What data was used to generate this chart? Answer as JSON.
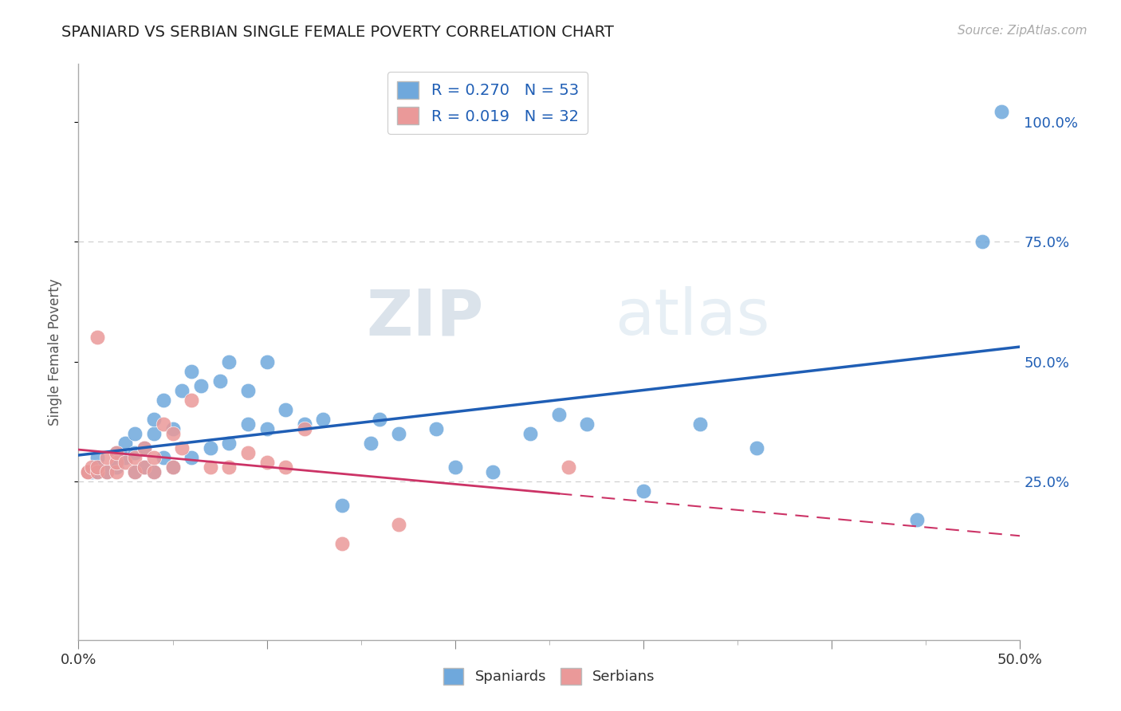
{
  "title": "SPANIARD VS SERBIAN SINGLE FEMALE POVERTY CORRELATION CHART",
  "source_text": "Source: ZipAtlas.com",
  "ylabel": "Single Female Poverty",
  "xlim": [
    0.0,
    0.5
  ],
  "ylim": [
    -0.08,
    1.12
  ],
  "spaniard_color": "#6fa8dc",
  "serbian_color": "#ea9999",
  "spaniard_line_color": "#1f5eb5",
  "serbian_line_color": "#cc3366",
  "legend_spaniard_label": "R = 0.270   N = 53",
  "legend_serbian_label": "R = 0.019   N = 32",
  "legend_bottom_spaniard": "Spaniards",
  "legend_bottom_serbian": "Serbians",
  "watermark_zip": "ZIP",
  "watermark_atlas": "atlas",
  "spaniard_x": [
    0.005,
    0.007,
    0.01,
    0.01,
    0.01,
    0.015,
    0.02,
    0.02,
    0.025,
    0.025,
    0.03,
    0.03,
    0.03,
    0.035,
    0.035,
    0.04,
    0.04,
    0.04,
    0.045,
    0.045,
    0.05,
    0.05,
    0.055,
    0.06,
    0.06,
    0.065,
    0.07,
    0.075,
    0.08,
    0.08,
    0.09,
    0.09,
    0.1,
    0.1,
    0.11,
    0.12,
    0.13,
    0.14,
    0.155,
    0.16,
    0.17,
    0.19,
    0.2,
    0.22,
    0.24,
    0.255,
    0.27,
    0.3,
    0.33,
    0.36,
    0.445,
    0.48,
    0.49
  ],
  "spaniard_y": [
    0.27,
    0.27,
    0.27,
    0.28,
    0.3,
    0.27,
    0.28,
    0.31,
    0.3,
    0.33,
    0.27,
    0.31,
    0.35,
    0.28,
    0.32,
    0.27,
    0.35,
    0.38,
    0.3,
    0.42,
    0.28,
    0.36,
    0.44,
    0.3,
    0.48,
    0.45,
    0.32,
    0.46,
    0.33,
    0.5,
    0.37,
    0.44,
    0.36,
    0.5,
    0.4,
    0.37,
    0.38,
    0.2,
    0.33,
    0.38,
    0.35,
    0.36,
    0.28,
    0.27,
    0.35,
    0.39,
    0.37,
    0.23,
    0.37,
    0.32,
    0.17,
    0.75,
    1.02
  ],
  "serbian_x": [
    0.005,
    0.005,
    0.007,
    0.01,
    0.01,
    0.01,
    0.015,
    0.015,
    0.02,
    0.02,
    0.02,
    0.025,
    0.03,
    0.03,
    0.035,
    0.035,
    0.04,
    0.04,
    0.045,
    0.05,
    0.05,
    0.055,
    0.06,
    0.07,
    0.08,
    0.09,
    0.1,
    0.11,
    0.12,
    0.14,
    0.17,
    0.26
  ],
  "serbian_y": [
    0.27,
    0.27,
    0.28,
    0.27,
    0.28,
    0.55,
    0.27,
    0.3,
    0.27,
    0.29,
    0.31,
    0.29,
    0.27,
    0.3,
    0.28,
    0.32,
    0.27,
    0.3,
    0.37,
    0.28,
    0.35,
    0.32,
    0.42,
    0.28,
    0.28,
    0.31,
    0.29,
    0.28,
    0.36,
    0.12,
    0.16,
    0.28
  ],
  "ytick_positions": [
    0.25,
    0.5,
    0.75,
    1.0
  ],
  "ytick_labels": [
    "25.0%",
    "50.0%",
    "75.0%",
    "100.0%"
  ],
  "xtick_positions": [
    0.0,
    0.1,
    0.2,
    0.3,
    0.4,
    0.5
  ],
  "xtick_labels": [
    "0.0%",
    "",
    "",
    "",
    "",
    "50.0%"
  ]
}
